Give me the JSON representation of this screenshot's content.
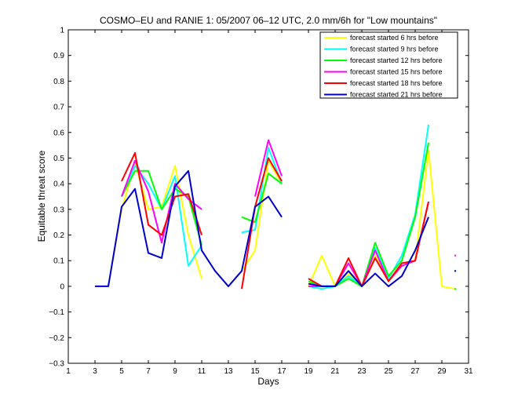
{
  "chart_data": {
    "type": "line",
    "title": "COSMO–EU and RANIE 1: 05/2007 06–12 UTC, 2.0 mm/6h for \"Low mountains\"",
    "xlabel": "Days",
    "ylabel": "Equitable threat score",
    "xlim": [
      1,
      31
    ],
    "ylim": [
      -0.3,
      1
    ],
    "xticks": [
      "1",
      "3",
      "5",
      "7",
      "9",
      "11",
      "13",
      "15",
      "17",
      "19",
      "21",
      "23",
      "25",
      "27",
      "29",
      "31"
    ],
    "yticks": [
      "−0.3",
      "−0.2",
      "−0.1",
      "0",
      "0.1",
      "0.2",
      "0.3",
      "0.4",
      "0.5",
      "0.6",
      "0.7",
      "0.8",
      "0.9",
      "1"
    ],
    "legend_position": "top-right",
    "series": [
      {
        "name": "forecast started 6 hrs before",
        "color": "#ffff00",
        "values": [
          null,
          null,
          0,
          0,
          0.3,
          0.48,
          0.3,
          0.31,
          0.47,
          0.2,
          0.03,
          null,
          null,
          0.06,
          0.14,
          0.49,
          0.4,
          null,
          0.0,
          0.12,
          0.0,
          0.05,
          0.0,
          0.12,
          0.02,
          0.08,
          0.1,
          0.53,
          0.0,
          -0.01
        ]
      },
      {
        "name": "forecast started 9 hrs before",
        "color": "#00ffff",
        "values": [
          null,
          null,
          null,
          null,
          0.35,
          0.47,
          0.4,
          0.3,
          0.43,
          0.08,
          0.16,
          null,
          null,
          0.21,
          0.22,
          0.54,
          0.4,
          null,
          0.0,
          -0.01,
          0.0,
          0.04,
          0.0,
          0.15,
          0.03,
          0.12,
          0.28,
          0.63,
          null,
          0.06
        ]
      },
      {
        "name": "forecast started 12 hrs before",
        "color": "#00ff00",
        "values": [
          null,
          null,
          null,
          null,
          0.35,
          0.45,
          0.45,
          0.3,
          0.38,
          0.35,
          0.16,
          null,
          null,
          0.27,
          0.25,
          0.44,
          0.4,
          null,
          0.02,
          0.0,
          0.0,
          0.03,
          0.0,
          0.17,
          0.04,
          0.1,
          0.27,
          0.56,
          null,
          -0.01
        ]
      },
      {
        "name": "forecast started 15 hrs before",
        "color": "#ff00ff",
        "values": [
          null,
          null,
          null,
          null,
          0.35,
          0.49,
          0.37,
          0.17,
          0.4,
          0.34,
          0.3,
          null,
          null,
          null,
          0.35,
          0.57,
          0.43,
          null,
          0.0,
          0.0,
          0.0,
          0.09,
          0.0,
          0.14,
          0.02,
          0.08,
          0.1,
          0.33,
          null,
          0.12
        ]
      },
      {
        "name": "forecast started 18 hrs before",
        "color": "#ff0000",
        "values": [
          null,
          null,
          null,
          null,
          0.41,
          0.52,
          0.24,
          0.2,
          0.35,
          0.36,
          0.2,
          null,
          null,
          -0.01,
          0.31,
          0.5,
          0.41,
          null,
          0.03,
          0.0,
          0.0,
          0.11,
          0.0,
          0.11,
          0.02,
          0.09,
          0.1,
          0.33,
          null,
          null
        ]
      },
      {
        "name": "forecast started 21 hrs before",
        "color": "#0000cc",
        "values": [
          null,
          null,
          0,
          0,
          0.31,
          0.38,
          0.13,
          0.11,
          0.39,
          0.45,
          0.14,
          0.06,
          0.0,
          0.06,
          0.31,
          0.35,
          0.27,
          null,
          0.01,
          0.0,
          0.0,
          0.06,
          0.0,
          0.05,
          0.0,
          0.04,
          0.14,
          0.27,
          null,
          0.06
        ]
      }
    ]
  }
}
